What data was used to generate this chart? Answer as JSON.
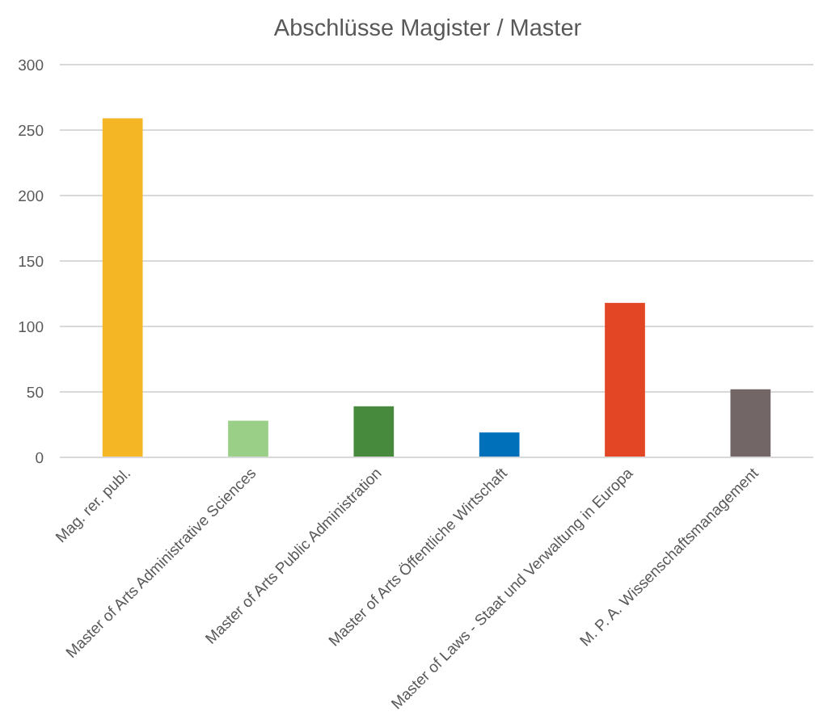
{
  "chart_data": {
    "type": "bar",
    "title": "Abschlüsse Magister / Master",
    "categories": [
      "Mag. rer. publ.",
      "Master of Arts Administrative Sciences",
      "Master of Arts Public Administration",
      "Master of Arts Öffentliche Wirtschaft",
      "Master of Laws - Staat und Verwaltung in Europa",
      "M. P. A. Wissenschaftsmanagement"
    ],
    "values": [
      259,
      28,
      39,
      19,
      118,
      52
    ],
    "colors": [
      "#f4b624",
      "#99cf87",
      "#478a3e",
      "#0070bb",
      "#e24625",
      "#726666"
    ],
    "ylim": [
      0,
      300
    ],
    "yticks": [
      0,
      50,
      100,
      150,
      200,
      250,
      300
    ],
    "grid": "y"
  }
}
